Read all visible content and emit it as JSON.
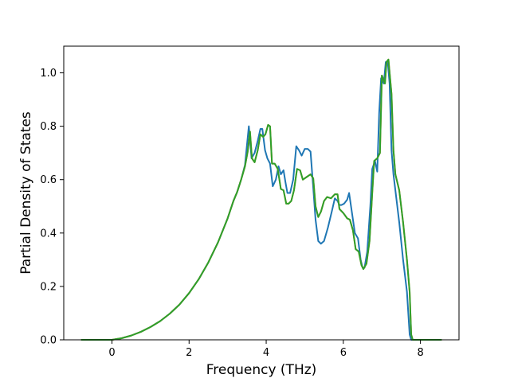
{
  "chart_data": {
    "type": "line",
    "title": "",
    "xlabel": "Frequency (THz)",
    "ylabel": "Partial Density of States",
    "xlim": [
      -1.25,
      9.0
    ],
    "ylim": [
      0.0,
      1.1
    ],
    "xticks": [
      0,
      2,
      4,
      6,
      8
    ],
    "yticks": [
      0.0,
      0.2,
      0.4,
      0.6,
      0.8,
      1.0
    ],
    "xtick_labels": [
      "0",
      "2",
      "4",
      "6",
      "8"
    ],
    "ytick_labels": [
      "0.0",
      "0.2",
      "0.4",
      "0.6",
      "0.8",
      "1.0"
    ],
    "grid": false,
    "legend": "none",
    "series": [
      {
        "color": "#1f77b4",
        "x": [
          -0.8,
          0.0,
          0.25,
          0.5,
          0.75,
          1.0,
          1.25,
          1.5,
          1.75,
          2.0,
          2.25,
          2.5,
          2.75,
          3.0,
          3.15,
          3.25,
          3.35,
          3.45,
          3.55,
          3.62,
          3.7,
          3.78,
          3.85,
          3.9,
          3.97,
          4.03,
          4.1,
          4.17,
          4.25,
          4.32,
          4.38,
          4.45,
          4.5,
          4.55,
          4.62,
          4.7,
          4.78,
          4.85,
          4.92,
          5.0,
          5.08,
          5.15,
          5.22,
          5.28,
          5.35,
          5.42,
          5.5,
          5.6,
          5.7,
          5.78,
          5.85,
          5.9,
          5.95,
          6.02,
          6.1,
          6.15,
          6.22,
          6.3,
          6.38,
          6.45,
          6.5,
          6.55,
          6.62,
          6.7,
          6.75,
          6.82,
          6.88,
          6.93,
          6.98,
          7.05,
          7.1,
          7.15,
          7.2,
          7.25,
          7.3,
          7.35,
          7.45,
          7.55,
          7.65,
          7.72,
          7.76,
          7.8,
          8.0,
          8.55
        ],
        "y": [
          0.0,
          0.0,
          0.006,
          0.016,
          0.03,
          0.048,
          0.07,
          0.098,
          0.132,
          0.175,
          0.227,
          0.29,
          0.365,
          0.455,
          0.52,
          0.555,
          0.6,
          0.655,
          0.8,
          0.68,
          0.7,
          0.745,
          0.79,
          0.79,
          0.71,
          0.68,
          0.66,
          0.575,
          0.6,
          0.65,
          0.62,
          0.635,
          0.59,
          0.55,
          0.55,
          0.6,
          0.725,
          0.71,
          0.69,
          0.715,
          0.715,
          0.705,
          0.57,
          0.45,
          0.37,
          0.36,
          0.37,
          0.42,
          0.48,
          0.53,
          0.52,
          0.505,
          0.505,
          0.51,
          0.525,
          0.55,
          0.48,
          0.4,
          0.38,
          0.3,
          0.27,
          0.27,
          0.33,
          0.5,
          0.64,
          0.67,
          0.63,
          0.85,
          0.98,
          0.96,
          1.04,
          1.045,
          0.96,
          0.71,
          0.62,
          0.56,
          0.44,
          0.3,
          0.18,
          0.02,
          0.0,
          0.0,
          0.0,
          0.0
        ]
      },
      {
        "color": "#ff7f0e",
        "x": [
          -0.8,
          0.0,
          0.25,
          0.5,
          0.75,
          1.0,
          1.25,
          1.5,
          1.75,
          2.0,
          2.25,
          2.5,
          2.75,
          3.0,
          3.15,
          3.25,
          3.35,
          3.45,
          3.52,
          3.58,
          3.63,
          3.7,
          3.78,
          3.85,
          3.92,
          3.98,
          4.05,
          4.1,
          4.15,
          4.22,
          4.3,
          4.38,
          4.45,
          4.52,
          4.58,
          4.65,
          4.72,
          4.8,
          4.88,
          4.95,
          5.05,
          5.15,
          5.22,
          5.28,
          5.35,
          5.42,
          5.5,
          5.58,
          5.68,
          5.78,
          5.85,
          5.9,
          6.0,
          6.1,
          6.17,
          6.25,
          6.32,
          6.4,
          6.47,
          6.52,
          6.6,
          6.68,
          6.75,
          6.8,
          6.88,
          6.95,
          7.0,
          7.08,
          7.12,
          7.17,
          7.25,
          7.3,
          7.35,
          7.45,
          7.55,
          7.65,
          7.72,
          7.76,
          7.8,
          8.0,
          8.55
        ],
        "y": [
          0.0,
          0.0,
          0.006,
          0.016,
          0.03,
          0.048,
          0.07,
          0.098,
          0.132,
          0.175,
          0.227,
          0.29,
          0.365,
          0.455,
          0.52,
          0.555,
          0.6,
          0.65,
          0.705,
          0.78,
          0.68,
          0.665,
          0.71,
          0.77,
          0.76,
          0.77,
          0.805,
          0.8,
          0.66,
          0.66,
          0.64,
          0.565,
          0.56,
          0.51,
          0.51,
          0.52,
          0.56,
          0.64,
          0.635,
          0.6,
          0.61,
          0.62,
          0.605,
          0.5,
          0.46,
          0.48,
          0.52,
          0.535,
          0.53,
          0.545,
          0.545,
          0.49,
          0.475,
          0.455,
          0.45,
          0.41,
          0.34,
          0.33,
          0.28,
          0.265,
          0.285,
          0.37,
          0.55,
          0.67,
          0.68,
          0.7,
          0.99,
          0.96,
          1.04,
          1.05,
          0.92,
          0.71,
          0.62,
          0.56,
          0.44,
          0.3,
          0.18,
          0.02,
          0.0,
          0.0,
          0.0
        ]
      },
      {
        "color": "#2ca02c",
        "x": [
          -0.8,
          0.0,
          0.25,
          0.5,
          0.75,
          1.0,
          1.25,
          1.5,
          1.75,
          2.0,
          2.25,
          2.5,
          2.75,
          3.0,
          3.15,
          3.25,
          3.35,
          3.45,
          3.52,
          3.58,
          3.63,
          3.7,
          3.78,
          3.85,
          3.92,
          3.98,
          4.05,
          4.1,
          4.15,
          4.22,
          4.3,
          4.38,
          4.45,
          4.52,
          4.58,
          4.65,
          4.72,
          4.8,
          4.88,
          4.95,
          5.05,
          5.15,
          5.22,
          5.28,
          5.35,
          5.42,
          5.5,
          5.58,
          5.68,
          5.78,
          5.85,
          5.9,
          6.0,
          6.1,
          6.17,
          6.25,
          6.32,
          6.4,
          6.47,
          6.52,
          6.6,
          6.68,
          6.75,
          6.8,
          6.88,
          6.95,
          7.0,
          7.08,
          7.12,
          7.17,
          7.25,
          7.3,
          7.35,
          7.45,
          7.55,
          7.65,
          7.72,
          7.76,
          7.8,
          8.0,
          8.55
        ],
        "y": [
          0.0,
          0.0,
          0.006,
          0.016,
          0.03,
          0.048,
          0.07,
          0.098,
          0.132,
          0.175,
          0.227,
          0.29,
          0.365,
          0.455,
          0.52,
          0.555,
          0.6,
          0.65,
          0.705,
          0.78,
          0.68,
          0.665,
          0.71,
          0.77,
          0.76,
          0.77,
          0.805,
          0.8,
          0.66,
          0.66,
          0.64,
          0.565,
          0.56,
          0.51,
          0.51,
          0.52,
          0.56,
          0.64,
          0.635,
          0.6,
          0.61,
          0.62,
          0.605,
          0.5,
          0.46,
          0.48,
          0.52,
          0.535,
          0.53,
          0.545,
          0.545,
          0.49,
          0.475,
          0.455,
          0.45,
          0.41,
          0.34,
          0.33,
          0.28,
          0.265,
          0.285,
          0.37,
          0.55,
          0.67,
          0.68,
          0.7,
          0.99,
          0.96,
          1.04,
          1.05,
          0.92,
          0.71,
          0.62,
          0.56,
          0.44,
          0.3,
          0.18,
          0.02,
          0.0,
          0.0,
          0.0
        ]
      }
    ]
  }
}
